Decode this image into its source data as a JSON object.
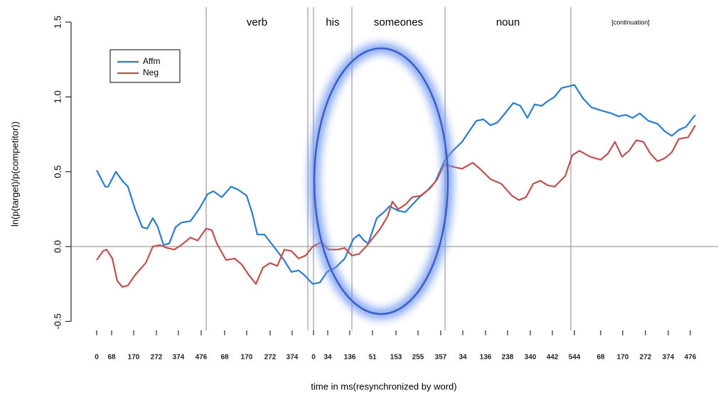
{
  "chart_data": {
    "type": "line",
    "x_label": "time in ms(resynchronized by word)",
    "y_label": "ln(p(target)/p(competitor))",
    "xlim": [
      -36,
      874
    ],
    "ylim": [
      -0.56,
      1.6
    ],
    "yticks": [
      -0.5,
      {
        "value": 0,
        "label": "0.0"
      },
      0.5,
      {
        "value": 1,
        "label": "1.0"
      },
      1.5
    ],
    "xticks": [
      {
        "value": 0,
        "label": "0"
      },
      {
        "value": 21,
        "label": "68"
      },
      {
        "value": 52,
        "label": "170"
      },
      {
        "value": 84,
        "label": "272"
      },
      {
        "value": 115,
        "label": "374"
      },
      {
        "value": 147,
        "label": "476"
      },
      {
        "value": 180,
        "label": "68"
      },
      {
        "value": 211,
        "label": "170"
      },
      {
        "value": 244,
        "label": "272"
      },
      {
        "value": 275,
        "label": "374"
      },
      {
        "value": 305,
        "label": "0"
      },
      {
        "value": 325,
        "label": "34"
      },
      {
        "value": 356,
        "label": "136"
      },
      {
        "value": 388,
        "label": "51"
      },
      {
        "value": 421,
        "label": "153"
      },
      {
        "value": 452,
        "label": "255"
      },
      {
        "value": 484,
        "label": "357"
      },
      {
        "value": 515,
        "label": "34"
      },
      {
        "value": 547,
        "label": "136"
      },
      {
        "value": 578,
        "label": "238"
      },
      {
        "value": 610,
        "label": "340"
      },
      {
        "value": 641,
        "label": "442"
      },
      {
        "value": 672,
        "label": "544"
      },
      {
        "value": 709,
        "label": "68"
      },
      {
        "value": 740,
        "label": "170"
      },
      {
        "value": 772,
        "label": "272"
      },
      {
        "value": 804,
        "label": "374"
      },
      {
        "value": 835,
        "label": "476"
      }
    ],
    "boundaries": [
      154,
      297,
      305,
      359,
      490,
      667
    ],
    "regions": [
      "verb",
      "his",
      "someones",
      "noun",
      "[continuation]"
    ],
    "zero_line": true,
    "legend": "topleft",
    "series": [
      {
        "name": "Affm",
        "color": "#2b7bcc",
        "x": [
          0,
          12,
          16,
          27,
          36,
          44,
          54,
          64,
          71,
          79,
          86,
          94,
          102,
          111,
          119,
          132,
          144,
          156,
          164,
          176,
          189,
          199,
          211,
          219,
          226,
          236,
          249,
          262,
          274,
          284,
          292,
          304,
          314,
          324,
          336,
          349,
          361,
          369,
          376,
          382,
          394,
          404,
          412,
          424,
          434,
          444,
          454,
          464,
          476,
          489,
          499,
          514,
          524,
          534,
          544,
          554,
          564,
          576,
          586,
          596,
          606,
          616,
          626,
          634,
          644,
          654,
          664,
          672,
          684,
          696,
          709,
          724,
          734,
          744,
          754,
          764,
          776,
          789,
          799,
          809,
          819,
          829,
          842
        ],
        "values": [
          0.51,
          0.4,
          0.4,
          0.5,
          0.44,
          0.4,
          0.25,
          0.13,
          0.12,
          0.19,
          0.13,
          0.01,
          0.02,
          0.13,
          0.16,
          0.17,
          0.25,
          0.35,
          0.37,
          0.33,
          0.4,
          0.38,
          0.34,
          0.22,
          0.08,
          0.08,
          0,
          -0.08,
          -0.17,
          -0.16,
          -0.19,
          -0.25,
          -0.24,
          -0.17,
          -0.14,
          -0.08,
          0.05,
          0.08,
          0.04,
          0.02,
          0.19,
          0.23,
          0.27,
          0.24,
          0.23,
          0.28,
          0.33,
          0.37,
          0.43,
          0.57,
          0.63,
          0.7,
          0.77,
          0.84,
          0.85,
          0.81,
          0.83,
          0.9,
          0.96,
          0.94,
          0.86,
          0.95,
          0.94,
          0.97,
          1.0,
          1.06,
          1.07,
          1.08,
          0.99,
          0.93,
          0.91,
          0.89,
          0.87,
          0.88,
          0.86,
          0.89,
          0.84,
          0.82,
          0.77,
          0.74,
          0.78,
          0.8,
          0.88
        ]
      },
      {
        "name": "Neg",
        "color": "#c0504d",
        "x": [
          0,
          9,
          14,
          22,
          29,
          36,
          44,
          54,
          69,
          79,
          89,
          99,
          109,
          119,
          132,
          142,
          154,
          162,
          169,
          182,
          194,
          204,
          214,
          224,
          234,
          244,
          254,
          264,
          274,
          284,
          294,
          304,
          316,
          326,
          339,
          349,
          359,
          369,
          379,
          389,
          399,
          409,
          416,
          424,
          434,
          444,
          456,
          469,
          479,
          489,
          504,
          514,
          529,
          539,
          554,
          569,
          584,
          594,
          604,
          614,
          624,
          634,
          644,
          659,
          669,
          679,
          694,
          709,
          719,
          729,
          739,
          749,
          759,
          769,
          779,
          789,
          799,
          809,
          819,
          832,
          842
        ],
        "values": [
          -0.09,
          -0.03,
          -0.02,
          -0.08,
          -0.23,
          -0.27,
          -0.26,
          -0.19,
          -0.11,
          0,
          0.01,
          -0.01,
          -0.02,
          0.01,
          0.06,
          0.04,
          0.12,
          0.11,
          0.02,
          -0.09,
          -0.08,
          -0.12,
          -0.19,
          -0.25,
          -0.14,
          -0.11,
          -0.13,
          -0.02,
          -0.03,
          -0.08,
          -0.06,
          0,
          0.03,
          -0.02,
          -0.02,
          -0.01,
          -0.06,
          -0.05,
          0,
          0.06,
          0.12,
          0.2,
          0.3,
          0.25,
          0.28,
          0.33,
          0.34,
          0.39,
          0.45,
          0.55,
          0.53,
          0.52,
          0.56,
          0.52,
          0.45,
          0.42,
          0.34,
          0.31,
          0.33,
          0.42,
          0.44,
          0.41,
          0.4,
          0.47,
          0.61,
          0.64,
          0.6,
          0.58,
          0.62,
          0.7,
          0.6,
          0.64,
          0.71,
          0.7,
          0.62,
          0.57,
          0.59,
          0.63,
          0.72,
          0.73,
          0.81
        ]
      }
    ]
  }
}
